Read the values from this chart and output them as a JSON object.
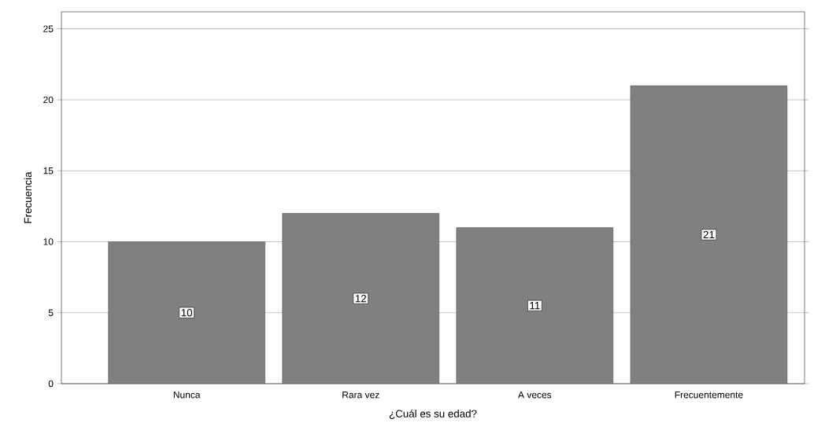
{
  "chart_data": {
    "type": "bar",
    "xlabel": "¿Cuál es su edad?",
    "ylabel": "Frecuencia",
    "categories": [
      "Nunca",
      "Rara vez",
      "A veces",
      "Frecuentemente"
    ],
    "values": [
      10,
      12,
      11,
      21
    ],
    "color": "#808080",
    "ylim": [
      0,
      26.2
    ],
    "yticks": [
      0,
      5,
      10,
      15,
      20,
      25
    ],
    "grid": "y",
    "data_labels": true
  }
}
